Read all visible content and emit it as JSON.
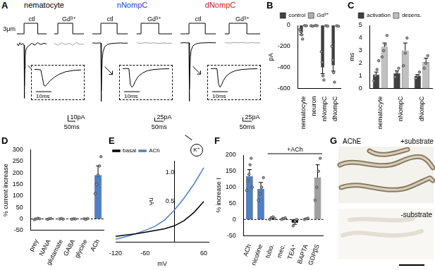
{
  "chart_data": [
    {
      "type": "line",
      "panel": "A",
      "title": "nematocyte",
      "color": "#000000",
      "tick_labels": false,
      "grid": false,
      "x": [
        0,
        10,
        20,
        30,
        40,
        48,
        50,
        51,
        53,
        56,
        60,
        70,
        85,
        100,
        120,
        140,
        160,
        180,
        200,
        225,
        250,
        275,
        300,
        325,
        350,
        375,
        400,
        425,
        450
      ],
      "xlim": [
        0,
        450
      ],
      "ylim": [
        -100,
        40
      ],
      "y2lim": [
        -20,
        4
      ],
      "stimulus": {
        "label": "3μm",
        "axis": "y2",
        "values": [
          0,
          0,
          0,
          0,
          0,
          0,
          3,
          3,
          3,
          3,
          3,
          3,
          3,
          3,
          3,
          3,
          0,
          0,
          0,
          null,
          0,
          0,
          3,
          3,
          3,
          3,
          0,
          0,
          0
        ]
      },
      "series": [
        {
          "name": "ctl",
          "color": "#000000",
          "values": [
            1,
            -3,
            2,
            -2,
            1,
            -2,
            -90,
            -70,
            -40,
            -20,
            -10,
            -5,
            -2,
            1,
            -2,
            2,
            -1,
            1,
            0,
            null,
            null,
            null,
            null,
            null,
            null,
            null,
            null,
            null,
            null
          ]
        },
        {
          "name": "Gd³⁺",
          "color": "#a0a0a0",
          "values": [
            null,
            null,
            null,
            null,
            null,
            null,
            null,
            null,
            null,
            null,
            null,
            null,
            null,
            null,
            null,
            null,
            null,
            null,
            null,
            null,
            1,
            -2,
            2,
            -1,
            1,
            -2,
            2,
            -1,
            0
          ]
        }
      ],
      "scale_bars": {
        "x": {
          "value": 50,
          "label": "50ms"
        },
        "y": {
          "value": 10,
          "label": "10pA"
        }
      },
      "inset": {
        "x": [
          0,
          2,
          4,
          5,
          6,
          7,
          8,
          10,
          13,
          16,
          20,
          25,
          30
        ],
        "xlim": [
          0,
          30
        ],
        "ylim": [
          -100,
          10
        ],
        "values": [
          0,
          1,
          -2,
          -40,
          -85,
          -90,
          -80,
          -60,
          -40,
          -25,
          -12,
          -5,
          -2
        ],
        "scale_bar": {
          "value": 10,
          "label": "10ms"
        }
      }
    },
    {
      "type": "line",
      "title": "nNompC",
      "color": "#2145c8",
      "tick_labels": false,
      "grid": false,
      "x": [
        0,
        10,
        20,
        30,
        40,
        48,
        50,
        51,
        53,
        56,
        60,
        70,
        85,
        100,
        120,
        140,
        160,
        180,
        200,
        225,
        250,
        275,
        300,
        325,
        350,
        375,
        400,
        425,
        450
      ],
      "xlim": [
        0,
        450
      ],
      "ylim": [
        -420,
        160
      ],
      "y2lim": [
        -20,
        4
      ],
      "stimulus": {
        "axis": "y2",
        "values": [
          0,
          0,
          0,
          0,
          0,
          0,
          3,
          3,
          3,
          3,
          3,
          3,
          3,
          3,
          3,
          3,
          0,
          0,
          0,
          null,
          0,
          0,
          3,
          3,
          3,
          3,
          0,
          0,
          0
        ]
      },
      "series": [
        {
          "name": "ctl",
          "color": "#000000",
          "values": [
            0,
            1,
            -1,
            0,
            1,
            0,
            -400,
            -330,
            -200,
            -110,
            -60,
            -25,
            -10,
            -4,
            -2,
            0,
            1,
            -1,
            0,
            null,
            null,
            null,
            null,
            null,
            null,
            null,
            null,
            null,
            null
          ]
        },
        {
          "name": "Gd³⁺",
          "color": "#a0a0a0",
          "values": [
            null,
            null,
            null,
            null,
            null,
            null,
            null,
            null,
            null,
            null,
            null,
            null,
            null,
            null,
            null,
            null,
            null,
            null,
            null,
            null,
            2,
            -2,
            3,
            -1,
            2,
            -3,
            1,
            -2,
            0
          ]
        }
      ],
      "scale_bars": {
        "x": {
          "value": 50,
          "label": "50ms"
        },
        "y": {
          "value": 25,
          "label": "25pA"
        }
      },
      "inset": {
        "x": [
          0,
          2,
          4,
          5,
          6,
          7,
          8,
          10,
          13,
          16,
          20,
          25,
          30
        ],
        "xlim": [
          0,
          30
        ],
        "ylim": [
          -420,
          20
        ],
        "values": [
          0,
          0,
          0,
          -350,
          -400,
          -360,
          -280,
          -170,
          -90,
          -45,
          -20,
          -8,
          -3
        ],
        "scale_bar": {
          "value": 10,
          "label": "10ms"
        }
      }
    },
    {
      "type": "line",
      "title": "dNompC",
      "color": "#d7191c",
      "tick_labels": false,
      "grid": false,
      "x": [
        0,
        10,
        20,
        30,
        40,
        48,
        50,
        51,
        53,
        56,
        60,
        70,
        85,
        100,
        120,
        140,
        160,
        180,
        200,
        225,
        250,
        275,
        300,
        325,
        350,
        375,
        400,
        425,
        450
      ],
      "xlim": [
        0,
        450
      ],
      "ylim": [
        -400,
        150
      ],
      "y2lim": [
        -20,
        4
      ],
      "stimulus": {
        "axis": "y2",
        "values": [
          0,
          0,
          0,
          0,
          0,
          0,
          3,
          3,
          3,
          3,
          3,
          3,
          3,
          3,
          3,
          3,
          0,
          0,
          0,
          null,
          0,
          0,
          3,
          3,
          3,
          3,
          0,
          0,
          0
        ]
      },
      "series": [
        {
          "name": "ctl",
          "color": "#000000",
          "values": [
            0,
            -1,
            1,
            0,
            -1,
            0,
            -380,
            -300,
            -180,
            -95,
            -50,
            -20,
            -8,
            -3,
            -1,
            0,
            1,
            0,
            0,
            null,
            null,
            null,
            null,
            null,
            null,
            null,
            null,
            null,
            null
          ]
        },
        {
          "name": "Gd³⁺",
          "color": "#a0a0a0",
          "values": [
            null,
            null,
            null,
            null,
            null,
            null,
            null,
            null,
            null,
            null,
            null,
            null,
            null,
            null,
            null,
            null,
            null,
            null,
            null,
            null,
            1,
            -2,
            2,
            -1,
            3,
            -2,
            1,
            -1,
            0
          ]
        }
      ],
      "scale_bars": {
        "x": {
          "value": 50,
          "label": "50ms"
        },
        "y": {
          "value": 25,
          "label": "25pA"
        }
      },
      "inset": {
        "x": [
          0,
          2,
          4,
          5,
          6,
          7,
          8,
          10,
          13,
          16,
          20,
          25,
          30
        ],
        "xlim": [
          0,
          30
        ],
        "ylim": [
          -400,
          20
        ],
        "values": [
          0,
          0,
          0,
          -320,
          -380,
          -330,
          -250,
          -150,
          -80,
          -40,
          -18,
          -7,
          -2
        ],
        "scale_bar": {
          "value": 10,
          "label": "10ms"
        }
      }
    },
    {
      "type": "bar",
      "panel": "B",
      "categories": [
        "nematocyte",
        "neuron",
        "nNompC",
        "dNompC"
      ],
      "ylabel": "pA",
      "ylim": [
        -600,
        0
      ],
      "yticks": [
        -600,
        -400,
        -200,
        0
      ],
      "legend": "top",
      "grid": false,
      "series": [
        {
          "name": "control",
          "color": "#404040",
          "values": [
            -70,
            -5,
            -400,
            -380
          ],
          "errors": [
            20,
            3,
            60,
            55
          ],
          "points": [
            [
              -40,
              -60,
              -90,
              -130
            ],
            [
              -3,
              -8
            ],
            [
              -250,
              -350,
              -480,
              -520
            ],
            [
              -200,
              -330,
              -450,
              -540
            ]
          ]
        },
        {
          "name": "Gd³⁺",
          "color": "#b0b0b0",
          "values": [
            -3,
            -2,
            -5,
            -6
          ],
          "errors": [
            1,
            1,
            2,
            2
          ],
          "points": [
            [
              -2,
              -4
            ],
            [
              -1,
              -3
            ],
            [
              -3,
              -7
            ],
            [
              -4,
              -8
            ]
          ]
        }
      ]
    },
    {
      "type": "bar",
      "panel": "C",
      "categories": [
        "nematocyte",
        "nNompC",
        "dNompC"
      ],
      "ylabel": "ms",
      "ylim": [
        0,
        5
      ],
      "yticks": [
        0,
        1,
        2,
        3,
        4,
        5
      ],
      "legend": "top",
      "grid": false,
      "series": [
        {
          "name": "activation",
          "color": "#404040",
          "values": [
            1.1,
            1.2,
            1.0
          ],
          "errors": [
            0.2,
            0.2,
            0.1
          ],
          "points": [
            [
              0.6,
              1.0,
              1.5,
              2.2
            ],
            [
              0.9,
              1.3,
              1.6
            ],
            [
              0.8,
              1.0,
              1.3
            ]
          ]
        },
        {
          "name": "desens.",
          "color": "#c0c0c0",
          "values": [
            3.3,
            3.0,
            2.1
          ],
          "errors": [
            0.3,
            0.6,
            0.3
          ],
          "points": [
            [
              2.5,
              3.0,
              3.5,
              4.2
            ],
            [
              1.8,
              2.8,
              4.0
            ],
            [
              1.6,
              2.0,
              2.6
            ]
          ]
        }
      ]
    },
    {
      "type": "bar",
      "panel": "D",
      "categories": [
        "prey",
        "NANA",
        "glutamate",
        "GABA",
        "glycine",
        "ACh"
      ],
      "ylabel": "% current increase",
      "ylim": [
        -50,
        300
      ],
      "yticks": [
        -50,
        0,
        50,
        100,
        150,
        200,
        250,
        300
      ],
      "grid": false,
      "values": [
        1,
        0,
        1,
        0,
        1,
        190
      ],
      "errors": [
        2,
        2,
        2,
        2,
        2,
        40
      ],
      "colors": [
        "#000000",
        "#000000",
        "#000000",
        "#000000",
        "#000000",
        "#4f7fc4"
      ],
      "points": [
        [
          -3,
          0,
          3,
          1
        ],
        [
          -2,
          1,
          2
        ],
        [
          0,
          2,
          -1
        ],
        [
          -1,
          1,
          0
        ],
        [
          1,
          -2,
          2
        ],
        [
          110,
          150,
          190,
          230,
          270
        ]
      ]
    },
    {
      "type": "line",
      "panel": "E",
      "xlabel": "mV",
      "ylabel": "nA",
      "icon_label": "K⁺",
      "legend": "top-left",
      "grid": false,
      "x": [
        -120,
        -100,
        -80,
        -60,
        -40,
        -20,
        0,
        20,
        40,
        60
      ],
      "xlim": [
        -120,
        70
      ],
      "xticks": [
        -120,
        -60,
        60
      ],
      "ylim": [
        -0.2,
        1.2
      ],
      "yticks": [
        0.5,
        {
          "value": 1,
          "label": "1.0"
        }
      ],
      "series": [
        {
          "name": "basal",
          "color": "#000000",
          "values": [
            -0.1,
            -0.08,
            -0.06,
            -0.03,
            0,
            0.03,
            0.08,
            0.17,
            0.31,
            0.5
          ]
        },
        {
          "name": "ACh",
          "color": "#4f7fc4",
          "values": [
            -0.15,
            -0.11,
            -0.06,
            0,
            0.07,
            0.18,
            0.35,
            0.56,
            0.8,
            1.08
          ]
        }
      ]
    },
    {
      "type": "bar",
      "panel": "F",
      "categories": [
        "ACh",
        "nicotine",
        "tubo.",
        "mec.",
        "TEA⁺",
        "BAPTA",
        "GDPβS"
      ],
      "ylabel": "% increase I",
      "ylim": [
        -50,
        200
      ],
      "yticks": [
        -50,
        0,
        50,
        100,
        150,
        200
      ],
      "grid": false,
      "values": [
        135,
        95,
        5,
        3,
        -10,
        2,
        130
      ],
      "errors": [
        20,
        20,
        3,
        2,
        5,
        2,
        40
      ],
      "colors": [
        "#4f7fc4",
        "#4f7fc4",
        "#000000",
        "#000000",
        "#000000",
        "#000000",
        "#a0a0a0"
      ],
      "points": [
        [
          90,
          120,
          140,
          170,
          190,
          100
        ],
        [
          60,
          80,
          100,
          130
        ],
        [
          0,
          5,
          8,
          3
        ],
        [
          0,
          3,
          5
        ],
        [
          -20,
          -5,
          0
        ],
        [
          0,
          2,
          4
        ],
        [
          60,
          100,
          150,
          190
        ]
      ],
      "annotations": [
        {
          "text": "+ACh",
          "from": "tubo.",
          "to": "GDPβS"
        }
      ]
    }
  ],
  "image_panel": {
    "panel": "G",
    "title": "AChE",
    "labels": [
      "+substrate",
      "-substrate"
    ]
  }
}
